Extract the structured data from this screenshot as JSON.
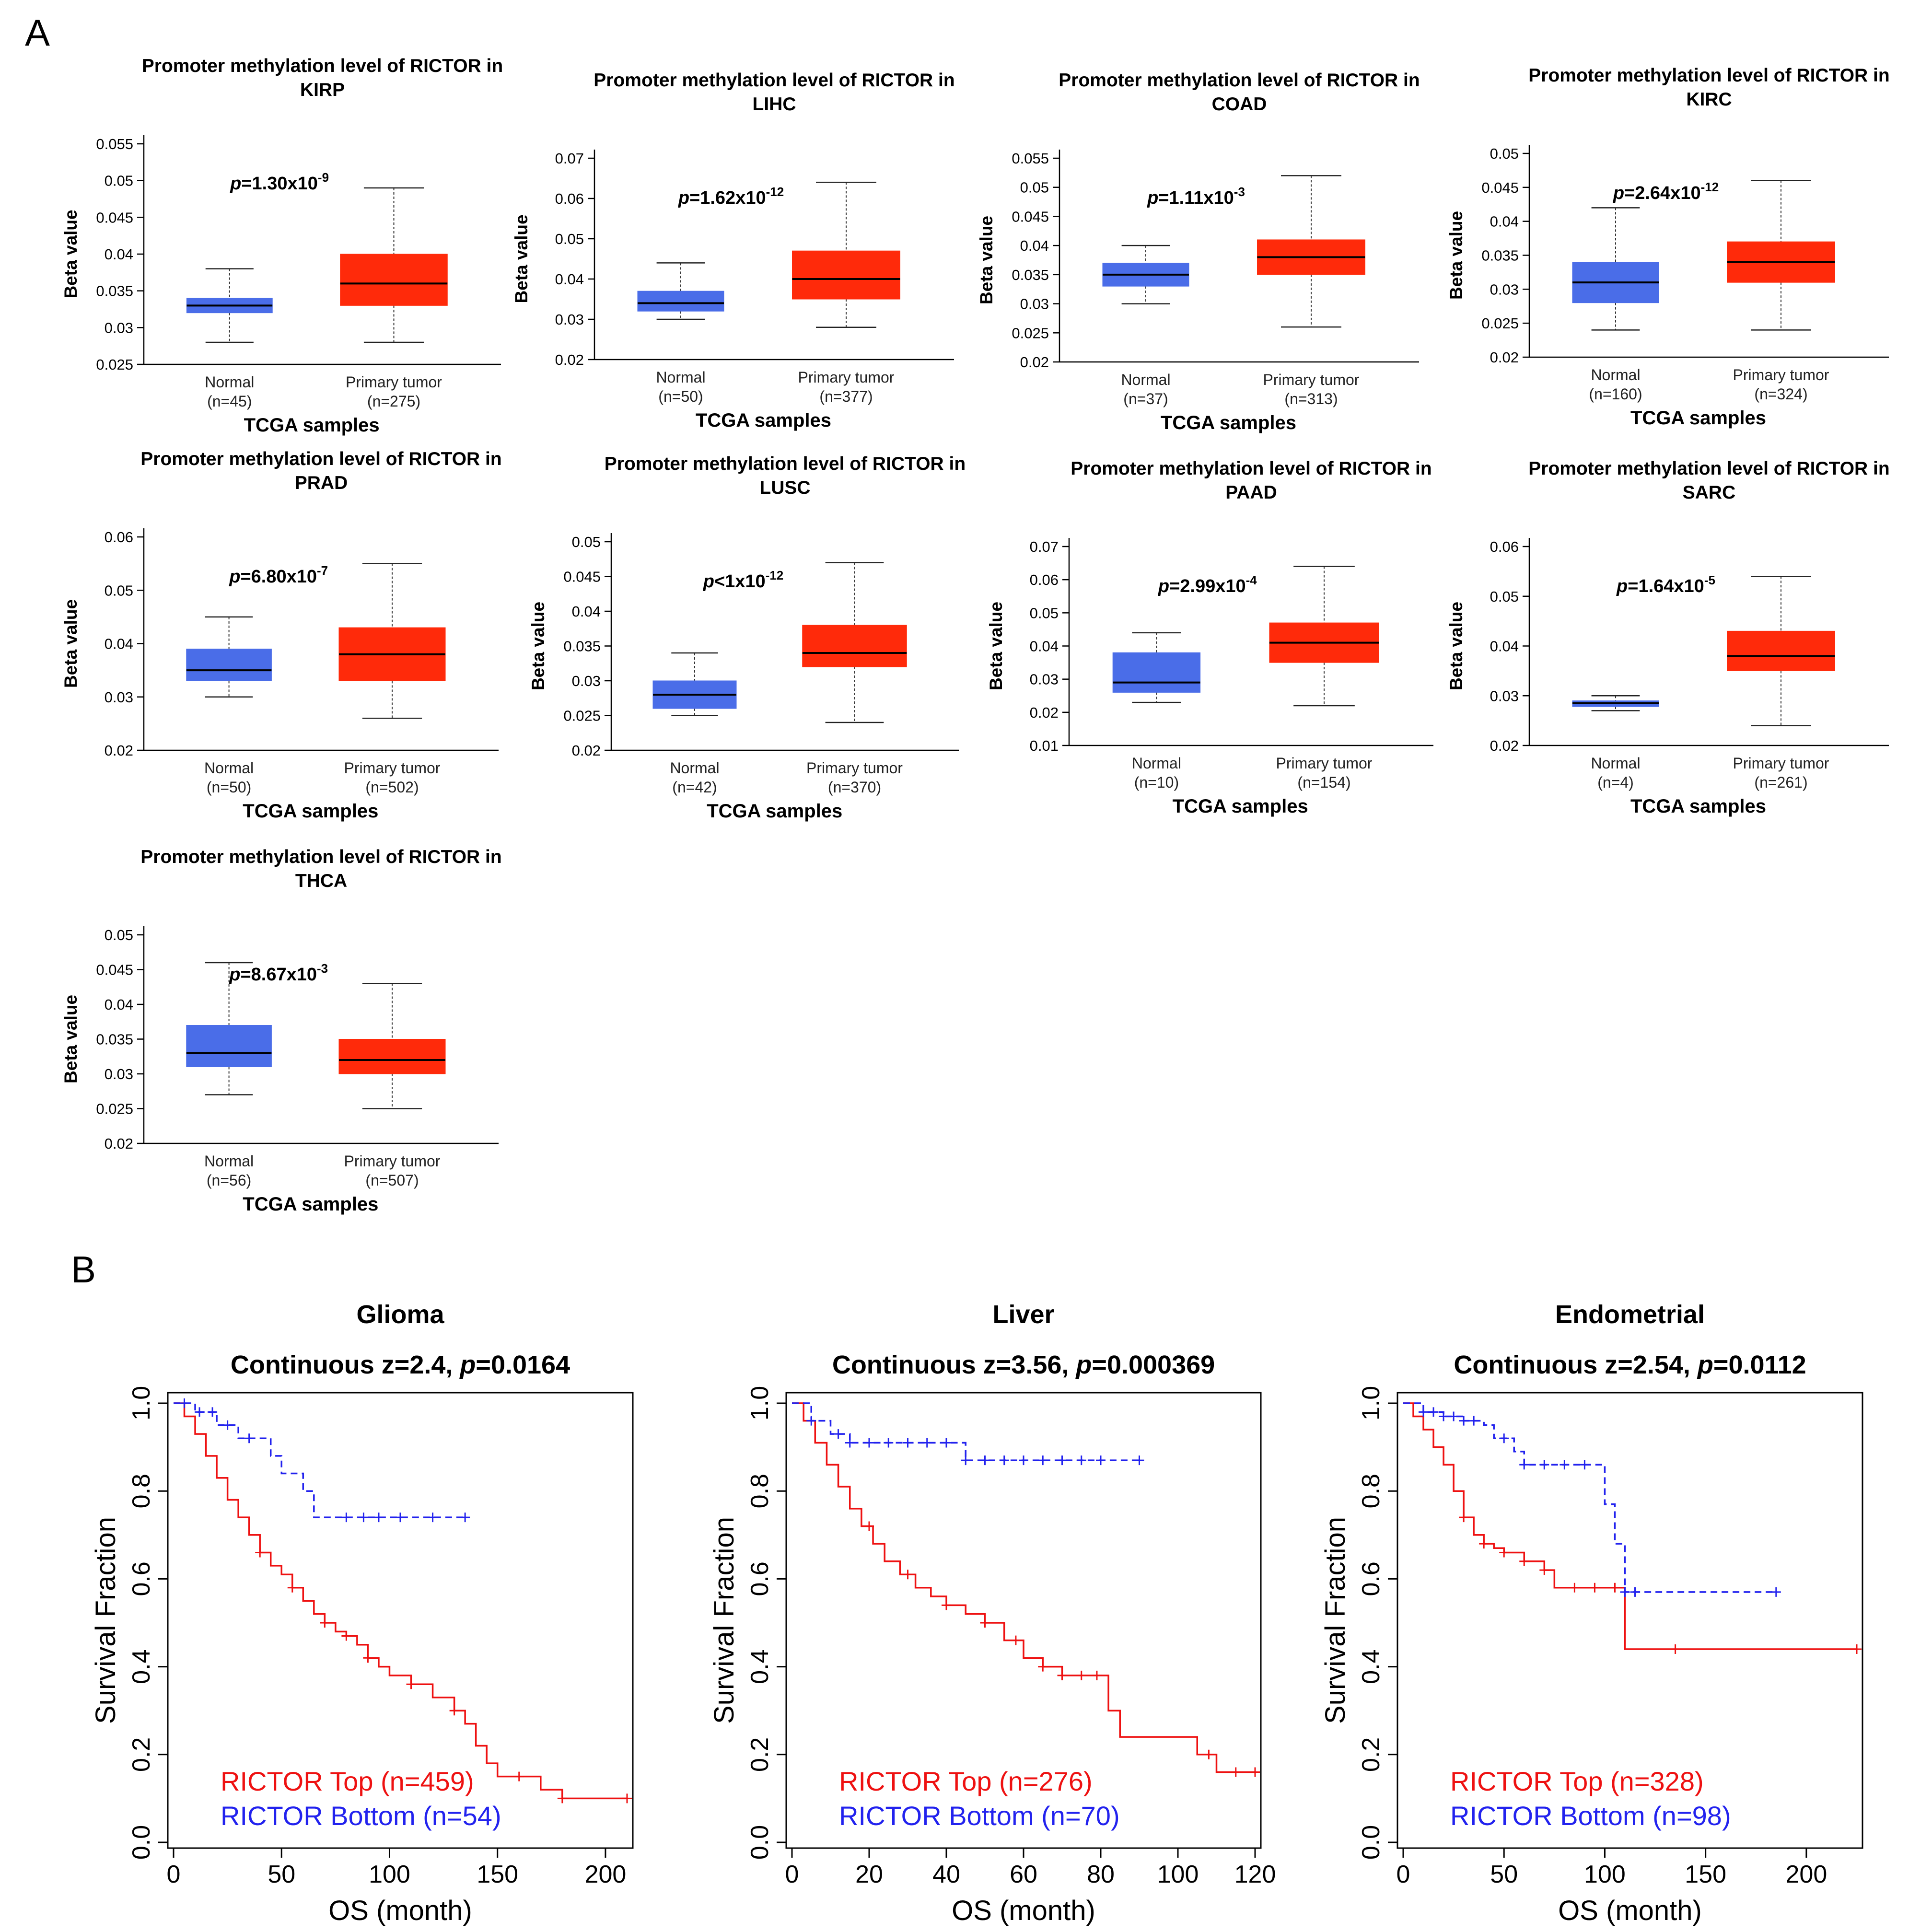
{
  "panel_labels": {
    "a": "A",
    "b": "B"
  },
  "colors": {
    "normal_box": "#4a6de8",
    "tumor_box": "#ff2a0a",
    "km_top": "#ee1111",
    "km_bottom": "#2222ee",
    "axis": "#000000"
  },
  "chart_data": [
    {
      "type": "box",
      "title": "Promoter methylation level of RICTOR in",
      "cancer": "KIRP",
      "ylabel": "Beta value",
      "xlabel": "TCGA samples",
      "p_value": {
        "prefix": "p",
        "text": "=1.30x10",
        "exp": "-9"
      },
      "yticks": [
        "0.025",
        "0.03",
        "0.035",
        "0.04",
        "0.045",
        "0.05",
        "0.055"
      ],
      "ylim": [
        0.025,
        0.055
      ],
      "groups": [
        {
          "name": "Normal",
          "n": "(n=45)",
          "min": 0.028,
          "q1": 0.032,
          "median": 0.033,
          "q3": 0.034,
          "max": 0.038
        },
        {
          "name": "Primary tumor",
          "n": "(n=275)",
          "min": 0.028,
          "q1": 0.033,
          "median": 0.036,
          "q3": 0.04,
          "max": 0.049
        }
      ]
    },
    {
      "type": "box",
      "title": "Promoter methylation level of RICTOR in",
      "cancer": "LIHC",
      "ylabel": "Beta value",
      "xlabel": "TCGA samples",
      "p_value": {
        "prefix": "p",
        "text": "=1.62x10",
        "exp": "-12"
      },
      "yticks": [
        "0.02",
        "0.03",
        "0.04",
        "0.05",
        "0.06",
        "0.07"
      ],
      "ylim": [
        0.02,
        0.07
      ],
      "groups": [
        {
          "name": "Normal",
          "n": "(n=50)",
          "min": 0.03,
          "q1": 0.032,
          "median": 0.034,
          "q3": 0.037,
          "max": 0.044
        },
        {
          "name": "Primary tumor",
          "n": "(n=377)",
          "min": 0.028,
          "q1": 0.035,
          "median": 0.04,
          "q3": 0.047,
          "max": 0.064
        }
      ]
    },
    {
      "type": "box",
      "title": "Promoter methylation level of RICTOR in",
      "cancer": "COAD",
      "ylabel": "Beta value",
      "xlabel": "TCGA samples",
      "p_value": {
        "prefix": "p",
        "text": "=1.11x10",
        "exp": "-3"
      },
      "yticks": [
        "0.02",
        "0.025",
        "0.03",
        "0.035",
        "0.04",
        "0.045",
        "0.05",
        "0.055"
      ],
      "ylim": [
        0.02,
        0.055
      ],
      "groups": [
        {
          "name": "Normal",
          "n": "(n=37)",
          "min": 0.03,
          "q1": 0.033,
          "median": 0.035,
          "q3": 0.037,
          "max": 0.04
        },
        {
          "name": "Primary tumor",
          "n": "(n=313)",
          "min": 0.026,
          "q1": 0.035,
          "median": 0.038,
          "q3": 0.041,
          "max": 0.052
        }
      ]
    },
    {
      "type": "box",
      "title": "Promoter methylation level of RICTOR in",
      "cancer": "KIRC",
      "ylabel": "Beta value",
      "xlabel": "TCGA samples",
      "p_value": {
        "prefix": "p",
        "text": "=2.64x10",
        "exp": "-12"
      },
      "yticks": [
        "0.02",
        "0.025",
        "0.03",
        "0.035",
        "0.04",
        "0.045",
        "0.05"
      ],
      "ylim": [
        0.02,
        0.05
      ],
      "groups": [
        {
          "name": "Normal",
          "n": "(n=160)",
          "min": 0.024,
          "q1": 0.028,
          "median": 0.031,
          "q3": 0.034,
          "max": 0.042
        },
        {
          "name": "Primary tumor",
          "n": "(n=324)",
          "min": 0.024,
          "q1": 0.031,
          "median": 0.034,
          "q3": 0.037,
          "max": 0.046
        }
      ]
    },
    {
      "type": "box",
      "title": "Promoter methylation level of RICTOR in",
      "cancer": "PRAD",
      "ylabel": "Beta value",
      "xlabel": "TCGA samples",
      "p_value": {
        "prefix": "p",
        "text": "=6.80x10",
        "exp": "-7"
      },
      "yticks": [
        "0.02",
        "0.03",
        "0.04",
        "0.05",
        "0.06"
      ],
      "ylim": [
        0.02,
        0.06
      ],
      "groups": [
        {
          "name": "Normal",
          "n": "(n=50)",
          "min": 0.03,
          "q1": 0.033,
          "median": 0.035,
          "q3": 0.039,
          "max": 0.045
        },
        {
          "name": "Primary tumor",
          "n": "(n=502)",
          "min": 0.026,
          "q1": 0.033,
          "median": 0.038,
          "q3": 0.043,
          "max": 0.055
        }
      ]
    },
    {
      "type": "box",
      "title": "Promoter methylation level of RICTOR in",
      "cancer": "LUSC",
      "ylabel": "Beta value",
      "xlabel": "TCGA samples",
      "p_value": {
        "prefix": "p",
        "text": "<1x10",
        "exp": "-12"
      },
      "yticks": [
        "0.02",
        "0.025",
        "0.03",
        "0.035",
        "0.04",
        "0.045",
        "0.05"
      ],
      "ylim": [
        0.02,
        0.05
      ],
      "groups": [
        {
          "name": "Normal",
          "n": "(n=42)",
          "min": 0.025,
          "q1": 0.026,
          "median": 0.028,
          "q3": 0.03,
          "max": 0.034
        },
        {
          "name": "Primary tumor",
          "n": "(n=370)",
          "min": 0.024,
          "q1": 0.032,
          "median": 0.034,
          "q3": 0.038,
          "max": 0.047
        }
      ]
    },
    {
      "type": "box",
      "title": "Promoter methylation level of RICTOR in",
      "cancer": "PAAD",
      "ylabel": "Beta value",
      "xlabel": "TCGA samples",
      "p_value": {
        "prefix": "p",
        "text": "=2.99x10",
        "exp": "-4"
      },
      "yticks": [
        "0.01",
        "0.02",
        "0.03",
        "0.04",
        "0.05",
        "0.06",
        "0.07"
      ],
      "ylim": [
        0.01,
        0.07
      ],
      "groups": [
        {
          "name": "Normal",
          "n": "(n=10)",
          "min": 0.023,
          "q1": 0.026,
          "median": 0.029,
          "q3": 0.038,
          "max": 0.044
        },
        {
          "name": "Primary tumor",
          "n": "(n=154)",
          "min": 0.022,
          "q1": 0.035,
          "median": 0.041,
          "q3": 0.047,
          "max": 0.064
        }
      ]
    },
    {
      "type": "box",
      "title": "Promoter methylation level of RICTOR in",
      "cancer": "SARC",
      "ylabel": "Beta value",
      "xlabel": "TCGA samples",
      "p_value": {
        "prefix": "p",
        "text": "=1.64x10",
        "exp": "-5"
      },
      "yticks": [
        "0.02",
        "0.03",
        "0.04",
        "0.05",
        "0.06"
      ],
      "ylim": [
        0.02,
        0.06
      ],
      "groups": [
        {
          "name": "Normal",
          "n": "(n=4)",
          "min": 0.027,
          "q1": 0.0278,
          "median": 0.0285,
          "q3": 0.029,
          "max": 0.03
        },
        {
          "name": "Primary tumor",
          "n": "(n=261)",
          "min": 0.024,
          "q1": 0.035,
          "median": 0.038,
          "q3": 0.043,
          "max": 0.054
        }
      ]
    },
    {
      "type": "box",
      "title": "Promoter methylation level of RICTOR in",
      "cancer": "THCA",
      "ylabel": "Beta value",
      "xlabel": "TCGA samples",
      "p_value": {
        "prefix": "p",
        "text": "=8.67x10",
        "exp": "-3"
      },
      "yticks": [
        "0.02",
        "0.025",
        "0.03",
        "0.035",
        "0.04",
        "0.045",
        "0.05"
      ],
      "ylim": [
        0.02,
        0.05
      ],
      "groups": [
        {
          "name": "Normal",
          "n": "(n=56)",
          "min": 0.027,
          "q1": 0.031,
          "median": 0.033,
          "q3": 0.037,
          "max": 0.046
        },
        {
          "name": "Primary tumor",
          "n": "(n=507)",
          "min": 0.025,
          "q1": 0.03,
          "median": 0.032,
          "q3": 0.035,
          "max": 0.043
        }
      ]
    },
    {
      "type": "line",
      "subtype": "kaplan-meier",
      "title": "Glioma",
      "subtitle": {
        "text": "Continuous z=2.4, ",
        "p_prefix": "p",
        "p_text": "=0.0164"
      },
      "xlabel": "OS (month)",
      "ylabel": "Survival Fraction",
      "xlim": [
        0,
        210
      ],
      "xticks": [
        0,
        50,
        100,
        150,
        200
      ],
      "ylim": [
        0,
        1
      ],
      "yticks": [
        "0.0",
        "0.2",
        "0.4",
        "0.6",
        "0.8",
        "1.0"
      ],
      "series": [
        {
          "name": "RICTOR Top (n=459)",
          "style": "solid",
          "x": [
            0,
            5,
            10,
            15,
            20,
            25,
            30,
            35,
            40,
            45,
            50,
            55,
            60,
            65,
            70,
            75,
            80,
            85,
            90,
            95,
            100,
            110,
            120,
            130,
            135,
            140,
            145,
            150,
            170,
            180,
            210
          ],
          "y": [
            1.0,
            0.97,
            0.93,
            0.88,
            0.83,
            0.78,
            0.74,
            0.7,
            0.66,
            0.63,
            0.61,
            0.58,
            0.55,
            0.52,
            0.5,
            0.48,
            0.47,
            0.45,
            0.42,
            0.4,
            0.38,
            0.36,
            0.33,
            0.3,
            0.27,
            0.22,
            0.18,
            0.15,
            0.12,
            0.1,
            0.1
          ],
          "censor_x": [
            40,
            55,
            70,
            80,
            90,
            110,
            130,
            160,
            180,
            210
          ]
        },
        {
          "name": "RICTOR Bottom (n=54)",
          "style": "dashed",
          "x": [
            0,
            10,
            20,
            30,
            45,
            50,
            60,
            65,
            70,
            90,
            100,
            135
          ],
          "y": [
            1.0,
            0.98,
            0.95,
            0.92,
            0.88,
            0.84,
            0.8,
            0.74,
            0.74,
            0.74,
            0.74,
            0.74
          ],
          "censor_x": [
            5,
            12,
            18,
            25,
            35,
            80,
            88,
            95,
            105,
            120,
            135
          ]
        }
      ]
    },
    {
      "type": "line",
      "subtype": "kaplan-meier",
      "title": "Liver",
      "subtitle": {
        "text": "Continuous z=3.56, ",
        "p_prefix": "p",
        "p_text": "=0.000369"
      },
      "xlabel": "OS (month)",
      "ylabel": "Survival Fraction",
      "xlim": [
        0,
        120
      ],
      "xticks": [
        0,
        20,
        40,
        60,
        80,
        100,
        120
      ],
      "ylim": [
        0,
        1
      ],
      "yticks": [
        "0.0",
        "0.2",
        "0.4",
        "0.6",
        "0.8",
        "1.0"
      ],
      "series": [
        {
          "name": "RICTOR Top (n=276)",
          "style": "solid",
          "x": [
            0,
            3,
            6,
            9,
            12,
            15,
            18,
            21,
            24,
            28,
            32,
            36,
            40,
            45,
            50,
            55,
            60,
            65,
            70,
            75,
            80,
            82,
            85,
            95,
            100,
            105,
            110,
            120
          ],
          "y": [
            1.0,
            0.96,
            0.91,
            0.86,
            0.81,
            0.76,
            0.72,
            0.68,
            0.64,
            0.61,
            0.58,
            0.56,
            0.54,
            0.52,
            0.5,
            0.46,
            0.42,
            0.4,
            0.38,
            0.38,
            0.38,
            0.3,
            0.24,
            0.24,
            0.24,
            0.2,
            0.16,
            0.16
          ],
          "censor_x": [
            20,
            30,
            40,
            50,
            58,
            65,
            70,
            75,
            79,
            108,
            115,
            120
          ]
        },
        {
          "name": "RICTOR Bottom (n=70)",
          "style": "dashed",
          "x": [
            0,
            5,
            10,
            15,
            45,
            90
          ],
          "y": [
            1.0,
            0.96,
            0.93,
            0.91,
            0.87,
            0.87
          ],
          "censor_x": [
            5,
            12,
            15,
            20,
            25,
            30,
            35,
            40,
            45,
            50,
            55,
            60,
            65,
            70,
            75,
            80,
            90
          ]
        }
      ]
    },
    {
      "type": "line",
      "subtype": "kaplan-meier",
      "title": "Endometrial",
      "subtitle": {
        "text": "Continuous z=2.54, ",
        "p_prefix": "p",
        "p_text": "=0.0112"
      },
      "xlabel": "OS (month)",
      "ylabel": "Survival Fraction",
      "xlim": [
        0,
        225
      ],
      "xticks": [
        0,
        50,
        100,
        150,
        200
      ],
      "ylim": [
        0,
        1
      ],
      "yticks": [
        "0.0",
        "0.2",
        "0.4",
        "0.6",
        "0.8",
        "1.0"
      ],
      "series": [
        {
          "name": "RICTOR Top (n=328)",
          "style": "solid",
          "x": [
            0,
            5,
            10,
            15,
            20,
            25,
            30,
            35,
            40,
            45,
            50,
            60,
            70,
            75,
            80,
            100,
            108,
            110,
            225
          ],
          "y": [
            1.0,
            0.97,
            0.94,
            0.9,
            0.86,
            0.8,
            0.74,
            0.7,
            0.68,
            0.67,
            0.66,
            0.64,
            0.62,
            0.58,
            0.58,
            0.58,
            0.58,
            0.44,
            0.44
          ],
          "censor_x": [
            30,
            40,
            50,
            60,
            70,
            85,
            95,
            105,
            135,
            225
          ]
        },
        {
          "name": "RICTOR Bottom (n=98)",
          "style": "dashed",
          "x": [
            0,
            10,
            20,
            30,
            40,
            45,
            55,
            60,
            95,
            100,
            105,
            110,
            185
          ],
          "y": [
            1.0,
            0.98,
            0.97,
            0.96,
            0.95,
            0.92,
            0.89,
            0.86,
            0.86,
            0.77,
            0.68,
            0.57,
            0.57
          ],
          "censor_x": [
            10,
            15,
            20,
            25,
            30,
            35,
            50,
            60,
            70,
            80,
            90,
            110,
            115,
            185
          ]
        }
      ]
    }
  ]
}
